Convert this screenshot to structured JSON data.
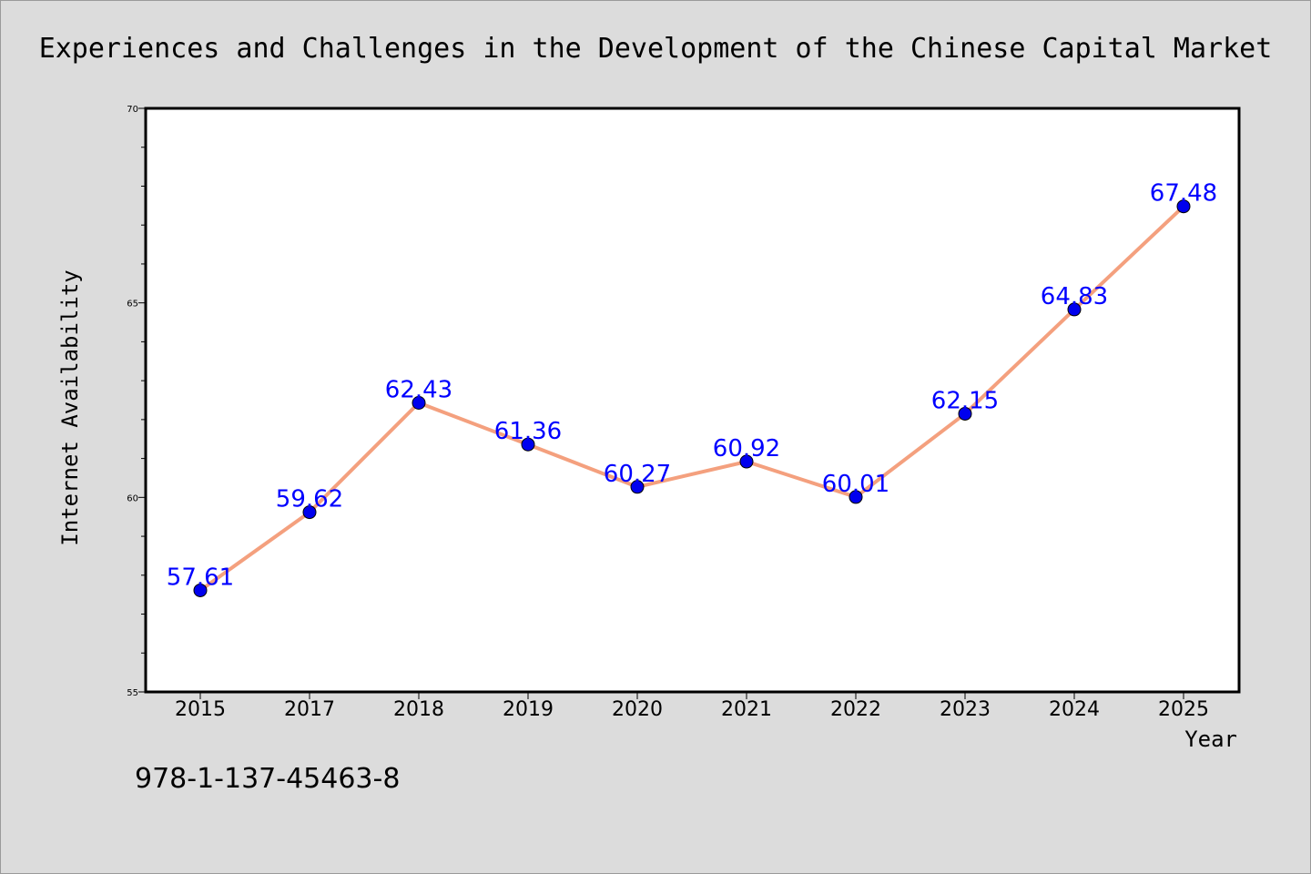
{
  "chart_data": {
    "type": "line",
    "title": "Experiences and Challenges in the Development of the Chinese Capital Market",
    "xlabel": "Year",
    "ylabel": "Internet Availability",
    "categories": [
      "2015",
      "2017",
      "2018",
      "2019",
      "2020",
      "2021",
      "2022",
      "2023",
      "2024",
      "2025"
    ],
    "series": [
      {
        "values": [
          57.61,
          59.62,
          62.43,
          61.36,
          60.27,
          60.92,
          60.01,
          62.15,
          64.83,
          67.48
        ],
        "labels": [
          "57.61",
          "59.62",
          "62.43",
          "61.36",
          "60.27",
          "60.92",
          "60.01",
          "62.15",
          "64.83",
          "67.48"
        ],
        "line_color": "#f4a07e",
        "marker_color": "#0000ee"
      }
    ],
    "ylim": [
      55,
      70
    ],
    "yticks": [
      "55",
      "60",
      "65",
      "70"
    ],
    "grid": false,
    "legend": "none"
  },
  "footer": {
    "isbn": "978-1-137-45463-8"
  },
  "colors": {
    "background": "#dcdcdc",
    "plot_background": "#ffffff",
    "data_label": "#0000ff"
  }
}
